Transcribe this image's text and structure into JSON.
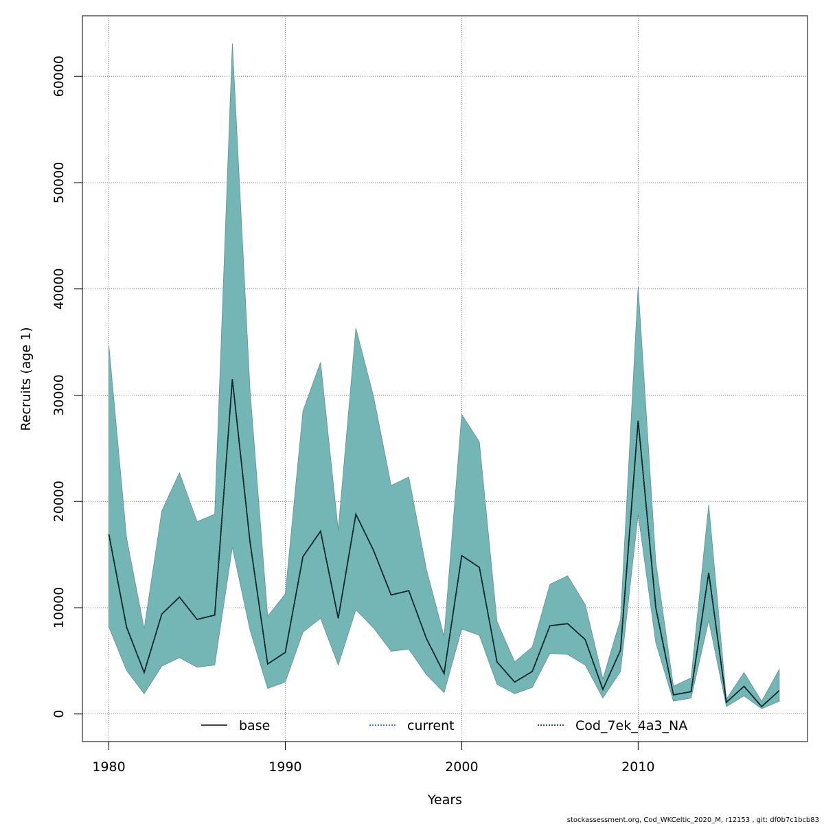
{
  "chart_data": {
    "type": "area",
    "xlabel": "Years",
    "ylabel": "Recruits (age 1)",
    "xlim": [
      1978.5,
      2019.6
    ],
    "ylim": [
      -2600,
      65700
    ],
    "x_ticks": [
      1980,
      1990,
      2000,
      2010
    ],
    "y_ticks": [
      0,
      10000,
      20000,
      30000,
      40000,
      50000,
      60000
    ],
    "grid": true,
    "legend_position": "bottom",
    "legend": [
      {
        "label": "base",
        "style": "solid",
        "color": "#000000"
      },
      {
        "label": "current",
        "style": "dotted",
        "color": "#1f6f9f"
      },
      {
        "label": "Cod_7ek_4a3_NA",
        "style": "dotted",
        "color": "#0a3d3a"
      }
    ],
    "band_color": "#74b6b6",
    "band_stroke": "#5f8f8f",
    "x": [
      1980,
      1981,
      1982,
      1983,
      1984,
      1985,
      1986,
      1987,
      1988,
      1989,
      1990,
      1991,
      1992,
      1993,
      1994,
      1995,
      1996,
      1997,
      1998,
      1999,
      2000,
      2001,
      2002,
      2003,
      2004,
      2005,
      2006,
      2007,
      2008,
      2009,
      2010,
      2011,
      2012,
      2013,
      2014,
      2015,
      2016,
      2017,
      2018
    ],
    "upper": [
      34700,
      16600,
      8000,
      19100,
      22700,
      18100,
      18800,
      63100,
      30500,
      9200,
      11300,
      28500,
      33100,
      17300,
      36300,
      29900,
      21500,
      22300,
      13600,
      7300,
      28200,
      25600,
      8700,
      4900,
      6300,
      12200,
      13000,
      10300,
      3300,
      8900,
      40200,
      14300,
      2600,
      3400,
      19700,
      1400,
      3900,
      1200,
      4200
    ],
    "lower": [
      8200,
      4100,
      1900,
      4500,
      5300,
      4400,
      4600,
      15700,
      7900,
      2400,
      3000,
      7700,
      9000,
      4600,
      9800,
      8100,
      5900,
      6100,
      3700,
      2000,
      8000,
      7400,
      2800,
      1900,
      2500,
      5700,
      5600,
      4600,
      1500,
      4000,
      18800,
      6700,
      1200,
      1500,
      8800,
      700,
      1700,
      500,
      1200
    ],
    "series": [
      {
        "name": "base",
        "values": [
          16900,
          8200,
          3900,
          9400,
          11000,
          8900,
          9300,
          31500,
          16200,
          4700,
          5800,
          14800,
          17200,
          9000,
          18800,
          15400,
          11200,
          11600,
          7100,
          3800,
          14900,
          13800,
          4900,
          3000,
          4000,
          8300,
          8500,
          7000,
          2300,
          6000,
          27600,
          10000,
          1800,
          2100,
          13300,
          1100,
          2600,
          700,
          2200
        ]
      },
      {
        "name": "current",
        "values": [
          16900,
          8200,
          3900,
          9400,
          11000,
          8900,
          9300,
          31500,
          16200,
          4700,
          5800,
          14800,
          17200,
          9000,
          18800,
          15400,
          11200,
          11600,
          7100,
          3800,
          14900,
          13800,
          4900,
          3000,
          4000,
          8300,
          8500,
          7000,
          2300,
          6000,
          27600,
          10000,
          1800,
          2100,
          13300,
          1100,
          2600,
          700,
          2200
        ]
      },
      {
        "name": "Cod_7ek_4a3_NA",
        "values": [
          16900,
          8200,
          3900,
          9400,
          11000,
          8900,
          9300,
          31500,
          16200,
          4700,
          5800,
          14800,
          17200,
          9000,
          18800,
          15400,
          11200,
          11600,
          7100,
          3800,
          14900,
          13800,
          4900,
          3000,
          4000,
          8300,
          8500,
          7000,
          2300,
          6000,
          27600,
          10000,
          1800,
          2100,
          13300,
          1100,
          2600,
          700,
          2200
        ]
      }
    ]
  },
  "footer": "stockassessment.org, Cod_WKCeltic_2020_M, r12153 , git: df0b7c1bcb83"
}
